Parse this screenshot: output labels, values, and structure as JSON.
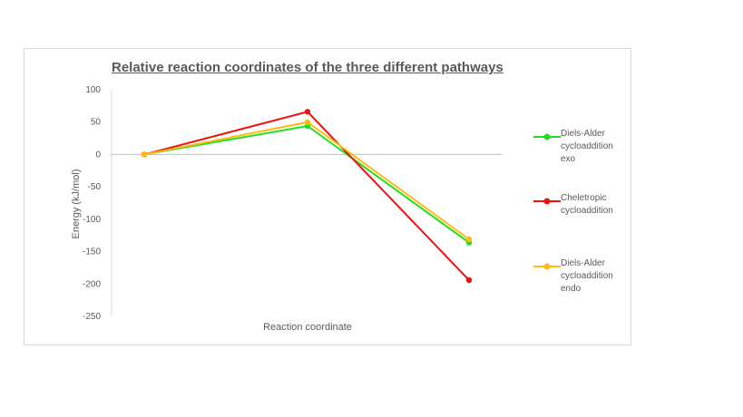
{
  "chart_data": {
    "type": "line",
    "title": "Relative reaction coordinates of the three different pathways",
    "xlabel": "Reaction coordinate",
    "ylabel": "Energy (kJ/mol)",
    "ylim": [
      -250,
      100
    ],
    "yticks": [
      100,
      50,
      0,
      -50,
      -100,
      -150,
      -200,
      -250
    ],
    "ytick_labels": [
      "100",
      "50",
      "0",
      "-50",
      "-100",
      "-150",
      "-200",
      "-250"
    ],
    "x": [
      1,
      2,
      3
    ],
    "grid": false,
    "legend_position": "right",
    "series": [
      {
        "name": "Diels-Alder cycloaddition exo",
        "color": "#22dd22",
        "values": [
          0,
          44,
          -136
        ]
      },
      {
        "name": "Cheletropic cycloaddition",
        "color": "#ee1111",
        "values": [
          0,
          66,
          -194
        ]
      },
      {
        "name": "Diels-Alder cycloaddition endo",
        "color": "#ffbb11",
        "values": [
          0,
          50,
          -131
        ]
      }
    ]
  }
}
